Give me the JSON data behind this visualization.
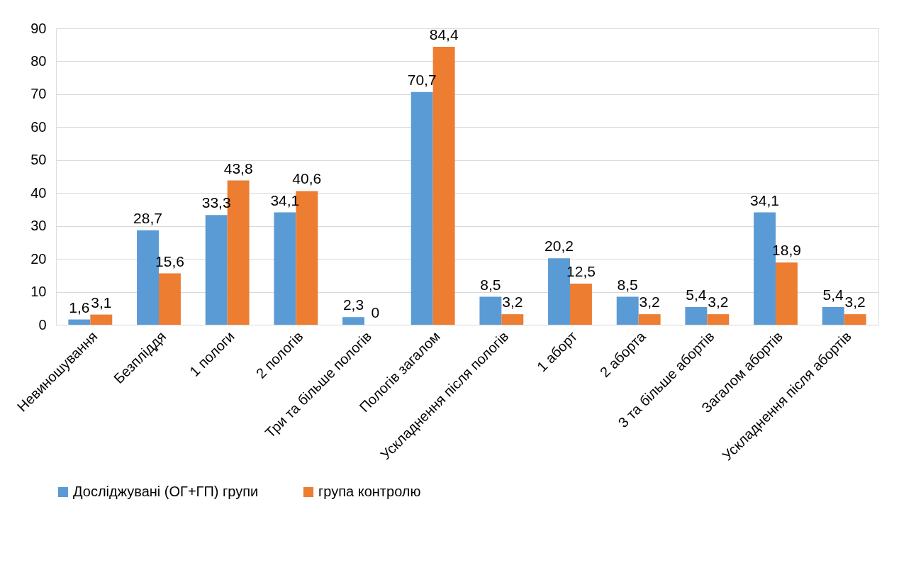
{
  "chart_data": {
    "type": "bar",
    "categories": [
      "Невиношування",
      "Безпліддя",
      "1 пологи",
      "2 пологів",
      "Три та більше пологів",
      "Пологів загалом",
      "Ускладнення після пологів",
      "1 аборт",
      "2 аборта",
      "3 та більше абортів",
      "Загалом абортів",
      "Ускладнення після абортів"
    ],
    "series": [
      {
        "name": "Досліджувані (ОГ+ГП) групи",
        "color": "#5b9bd5",
        "values": [
          1.6,
          28.7,
          33.3,
          34.1,
          2.3,
          70.7,
          8.5,
          20.2,
          8.5,
          5.4,
          34.1,
          5.4
        ],
        "value_labels": [
          "1,6",
          "28,7",
          "33,3",
          "34,1",
          "2,3",
          "70,7",
          "8,5",
          "20,2",
          "8,5",
          "5,4",
          "34,1",
          "5,4"
        ]
      },
      {
        "name": "група контролю",
        "color": "#ed7d31",
        "values": [
          3.1,
          15.6,
          43.8,
          40.6,
          0,
          84.4,
          3.2,
          12.5,
          3.2,
          3.2,
          18.9,
          3.2
        ],
        "value_labels": [
          "3,1",
          "15,6",
          "43,8",
          "40,6",
          "0",
          "84,4",
          "3,2",
          "12,5",
          "3,2",
          "3,2",
          "18,9",
          "3,2"
        ]
      }
    ],
    "ylim": [
      0,
      90
    ],
    "yticks": [
      0,
      10,
      20,
      30,
      40,
      50,
      60,
      70,
      80,
      90
    ],
    "grid": "y",
    "legend": "bottom"
  }
}
